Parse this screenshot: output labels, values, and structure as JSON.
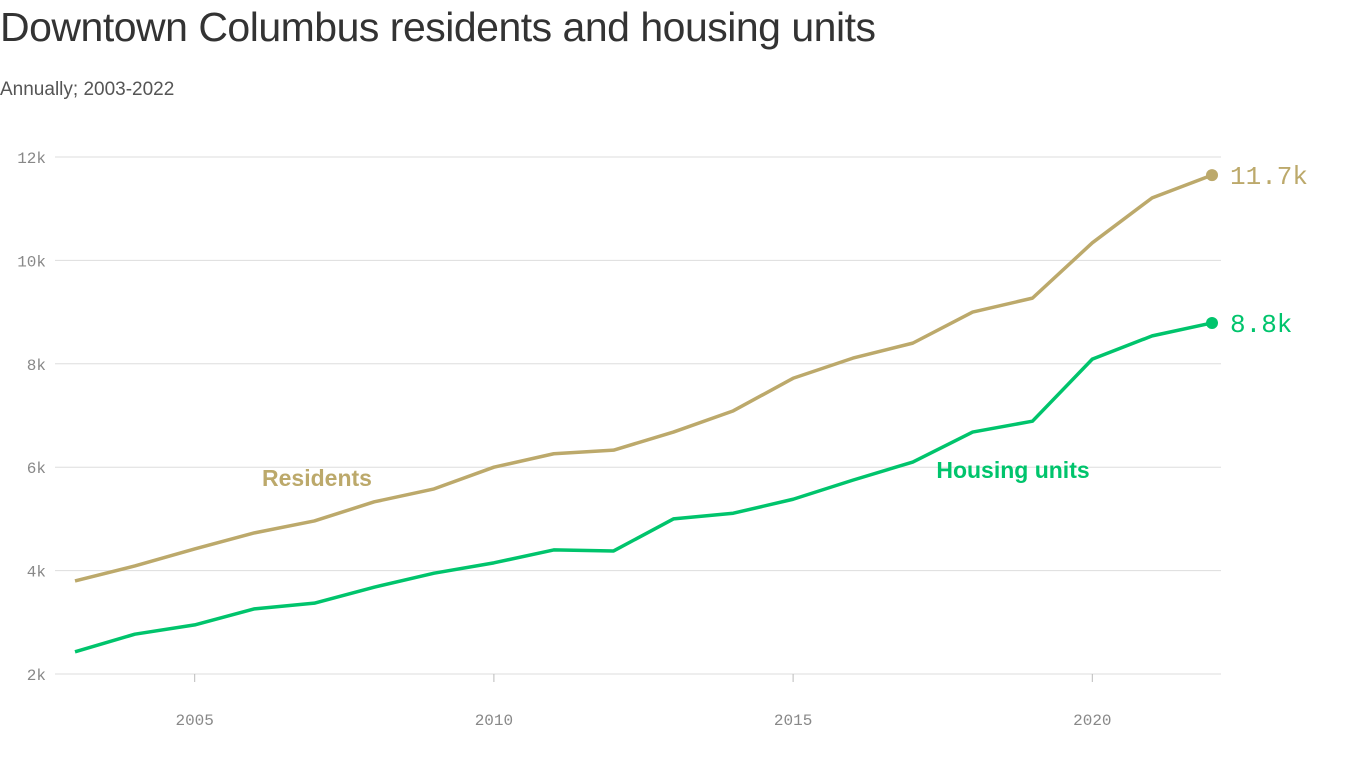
{
  "chart_data": {
    "type": "line",
    "title": "Downtown Columbus residents and housing units",
    "subtitle": "Annually; 2003-2022",
    "xlabel": "",
    "ylabel": "",
    "x": [
      2003,
      2004,
      2005,
      2006,
      2007,
      2008,
      2009,
      2010,
      2011,
      2012,
      2013,
      2014,
      2015,
      2016,
      2017,
      2018,
      2019,
      2020,
      2021,
      2022
    ],
    "xlim": [
      2003,
      2022
    ],
    "ylim": [
      2000,
      12000
    ],
    "x_ticks": [
      2005,
      2010,
      2015,
      2020
    ],
    "x_tick_labels": [
      "2005",
      "2010",
      "2015",
      "2020"
    ],
    "y_ticks": [
      2000,
      4000,
      6000,
      8000,
      10000,
      12000
    ],
    "y_tick_labels": [
      "2k",
      "4k",
      "6k",
      "8k",
      "10k",
      "12k"
    ],
    "grid": "horizontal",
    "series": [
      {
        "name": "Residents",
        "color": "#BCA96B",
        "end_label": "11.7k",
        "values": [
          3800,
          4090,
          4420,
          4730,
          4960,
          5330,
          5580,
          6000,
          6260,
          6330,
          6680,
          7090,
          7720,
          8110,
          8400,
          9000,
          9270,
          10340,
          11210,
          11650
        ]
      },
      {
        "name": "Housing units",
        "color": "#00C46C",
        "end_label": "8.8k",
        "values": [
          2430,
          2770,
          2950,
          3260,
          3370,
          3680,
          3950,
          4150,
          4400,
          4380,
          5000,
          5110,
          5380,
          5750,
          6100,
          6680,
          6890,
          8090,
          8540,
          8790
        ]
      }
    ]
  }
}
